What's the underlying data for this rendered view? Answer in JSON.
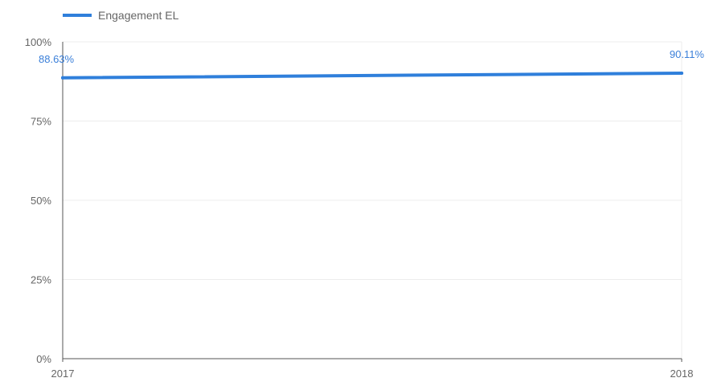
{
  "chart_data": {
    "type": "line",
    "x": [
      "2017",
      "2018"
    ],
    "series": [
      {
        "name": "Engagement EL",
        "values": [
          88.63,
          90.11
        ],
        "data_labels": [
          "88.63%",
          "90.11%"
        ],
        "color": "#2f7fdb"
      }
    ],
    "y_ticks": [
      "0%",
      "25%",
      "50%",
      "75%",
      "100%"
    ],
    "ylim": [
      0,
      100
    ],
    "grid": true,
    "legend": "top-left"
  }
}
